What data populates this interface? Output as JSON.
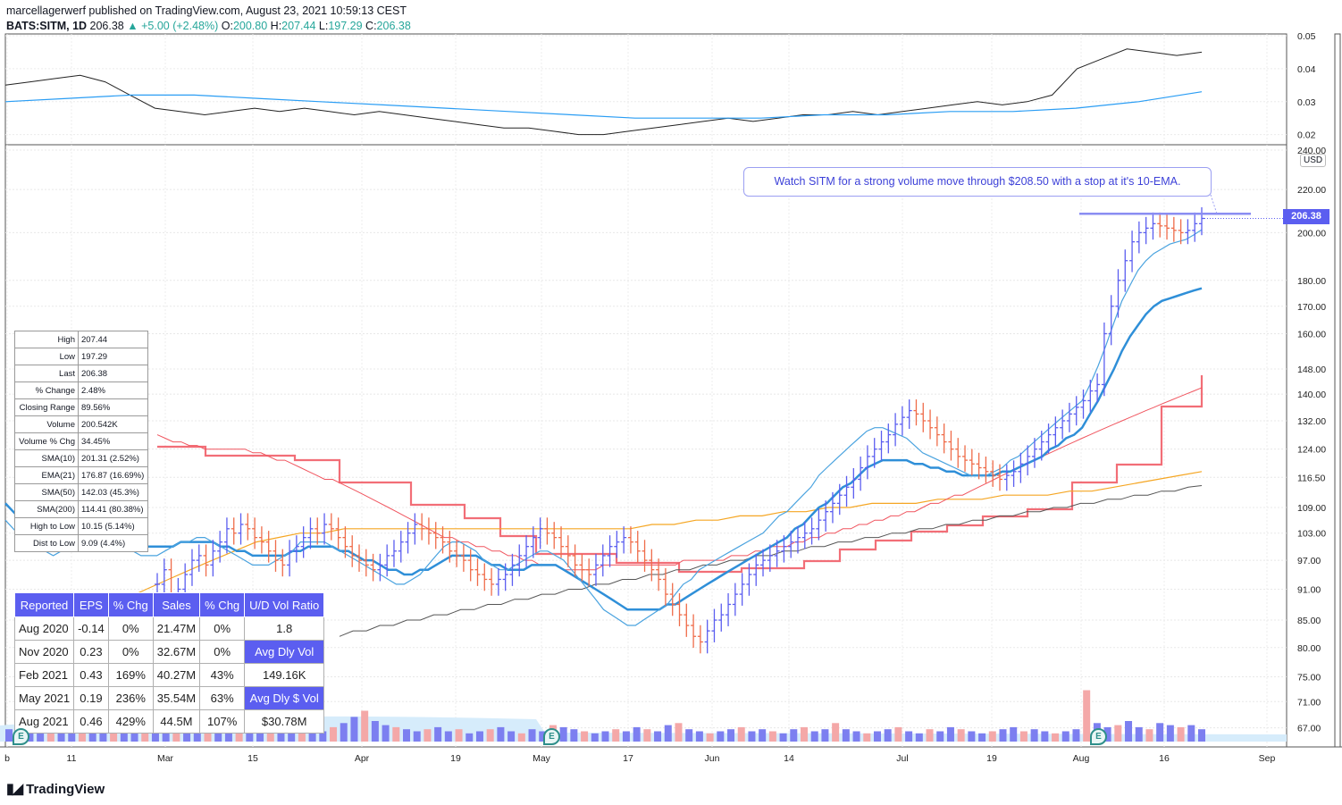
{
  "header": {
    "publish_line": "marcellagerwerf published on TradingView.com, August 23, 2021 10:59:13 CEST",
    "symbol": "BATS:SITM, 1D",
    "last": "206.38",
    "change": "▲ +5.00 (+2.48%)",
    "ohlc_o_label": "O:",
    "ohlc_o": "200.80",
    "ohlc_h_label": "H:",
    "ohlc_h": "207.44",
    "ohlc_l_label": "L:",
    "ohlc_l": "197.29",
    "ohlc_c_label": "C:",
    "ohlc_c": "206.38"
  },
  "annotation": "Watch SITM for a strong volume move through $208.50 with a stop at it's 10-EMA.",
  "price_tag": "206.38",
  "currency": "USD",
  "logo_text": "TradingView",
  "stats": [
    {
      "k": "High",
      "v": "207.44"
    },
    {
      "k": "Low",
      "v": "197.29"
    },
    {
      "k": "Last",
      "v": "206.38"
    },
    {
      "k": "% Change",
      "v": "2.48%"
    },
    {
      "k": "Closing Range",
      "v": "89.56%"
    },
    {
      "k": "Volume",
      "v": "200.542K"
    },
    {
      "k": "Volume % Chg",
      "v": "34.45%"
    },
    {
      "k": "SMA(10)",
      "v": "201.31 (2.52%)"
    },
    {
      "k": "EMA(21)",
      "v": "176.87 (16.69%)"
    },
    {
      "k": "SMA(50)",
      "v": "142.03 (45.3%)"
    },
    {
      "k": "SMA(200)",
      "v": "114.41 (80.38%)"
    },
    {
      "k": "High to Low",
      "v": "10.15 (5.14%)"
    },
    {
      "k": "Dist to Low",
      "v": "9.09 (4.4%)"
    }
  ],
  "earnings": {
    "headers": [
      "Reported",
      "EPS",
      "% Chg",
      "Sales",
      "% Chg",
      "U/D Vol Ratio"
    ],
    "rows": [
      [
        "Aug 2020",
        "-0.14",
        "0%",
        "21.47M",
        "0%",
        "1.8"
      ],
      [
        "Nov 2020",
        "0.23",
        "0%",
        "32.67M",
        "0%",
        "Avg Dly Vol"
      ],
      [
        "Feb 2021",
        "0.43",
        "169%",
        "40.27M",
        "43%",
        "149.16K"
      ],
      [
        "May 2021",
        "0.19",
        "236%",
        "35.54M",
        "63%",
        "Avg Dly $ Vol"
      ],
      [
        "Aug 2021",
        "0.46",
        "429%",
        "44.5M",
        "107%",
        "$30.78M"
      ]
    ]
  },
  "earnings_marker": "E",
  "colors": {
    "up": "#5b5ef0",
    "down": "#ef6c4a",
    "ema10": "#4aa3df",
    "ema21": "#2f8fd8",
    "sma50": "#f0555f",
    "sma200": "#555555",
    "orange": "#f5a623",
    "rs": "#222222",
    "rs_ma": "#2a9df4"
  },
  "chart_data": {
    "type": "line",
    "title": "",
    "xlabel": "",
    "ylabel": "USD",
    "x_tick_labels": [
      "b",
      "11",
      "Mar",
      "15",
      "Apr",
      "19",
      "May",
      "17",
      "Jun",
      "14",
      "Jul",
      "19",
      "Aug",
      "16",
      "Sep"
    ],
    "y_tick_labels": [
      "67.00",
      "71.00",
      "75.00",
      "80.00",
      "85.00",
      "91.00",
      "97.00",
      "103.00",
      "109.00",
      "116.50",
      "124.00",
      "132.00",
      "140.00",
      "148.00",
      "160.00",
      "170.00",
      "180.00",
      "200.00",
      "220.00",
      "240.00"
    ],
    "ylim": [
      65,
      240
    ],
    "scale": "log",
    "upper_pane": {
      "y_tick_labels": [
        "0.02",
        "0.03",
        "0.04",
        "0.05"
      ],
      "ylim": [
        0.018,
        0.05
      ]
    },
    "series": [
      {
        "name": "",
        "kind": "close",
        "values": [
          92,
          95,
          90,
          91,
          94,
          97,
          98,
          96,
          99,
          101,
          104,
          103,
          105,
          104,
          102,
          101,
          99,
          97,
          96,
          99,
          100,
          102,
          104,
          103,
          105,
          104,
          102,
          100,
          98,
          97,
          96,
          95,
          96,
          98,
          99,
          101,
          103,
          105,
          104,
          103,
          102,
          101,
          99,
          98,
          97,
          95,
          94,
          93,
          92,
          93,
          94,
          96,
          98,
          100,
          102,
          104,
          103,
          102,
          100,
          98,
          96,
          95,
          94,
          96,
          98,
          100,
          101,
          102,
          101,
          99,
          97,
          95,
          93,
          90,
          88,
          86,
          84,
          82,
          81,
          83,
          85,
          86,
          88,
          90,
          92,
          94,
          96,
          97,
          98,
          99,
          100,
          101,
          102,
          103,
          104,
          106,
          108,
          110,
          112,
          114,
          116,
          119,
          122,
          124,
          126,
          128,
          131,
          133,
          135,
          134,
          132,
          130,
          128,
          126,
          124,
          122,
          121,
          120,
          119,
          118,
          117,
          116,
          117,
          118,
          120,
          122,
          124,
          126,
          128,
          130,
          132,
          134,
          136,
          138,
          141,
          143,
          160,
          170,
          180,
          188,
          196,
          200,
          202,
          204,
          203,
          202,
          201,
          200,
          201,
          204,
          206.38
        ]
      },
      {
        "name": "",
        "kind": "ema10",
        "values": [
          106,
          104,
          102,
          100,
          99,
          99,
          98,
          99,
          100,
          100,
          101,
          102,
          102,
          102,
          101,
          100,
          99,
          98,
          98,
          98,
          99,
          100,
          101,
          101,
          102,
          102,
          101,
          100,
          99,
          98,
          97,
          96,
          96,
          96,
          97,
          98,
          99,
          101,
          101,
          101,
          101,
          100,
          99,
          98,
          97,
          96,
          95,
          94,
          93,
          92,
          92,
          93,
          94,
          96,
          98,
          100,
          101,
          101,
          100,
          99,
          97,
          96,
          95,
          95,
          96,
          97,
          98,
          99,
          99,
          98,
          97,
          95,
          93,
          91,
          89,
          87,
          86,
          85,
          84,
          84,
          85,
          86,
          87,
          88,
          90,
          92,
          93,
          95,
          96,
          97,
          98,
          99,
          100,
          101,
          102,
          103,
          105,
          107,
          108,
          110,
          112,
          114,
          117,
          119,
          121,
          123,
          125,
          127,
          129,
          130,
          130,
          129,
          128,
          127,
          125,
          123,
          122,
          121,
          120,
          119,
          118,
          117,
          117,
          117,
          118,
          119,
          121,
          122,
          124,
          126,
          128,
          130,
          132,
          134,
          136,
          138,
          143,
          149,
          156,
          164,
          172,
          178,
          184,
          188,
          191,
          193,
          195,
          196,
          197,
          199,
          201.31
        ]
      },
      {
        "name": "",
        "kind": "ema21",
        "values": [
          110,
          108,
          106,
          105,
          104,
          103,
          102,
          102,
          102,
          102,
          102,
          102,
          102,
          102,
          102,
          101,
          101,
          100,
          100,
          100,
          100,
          100,
          101,
          101,
          101,
          101,
          101,
          100,
          100,
          99,
          99,
          98,
          98,
          98,
          98,
          98,
          99,
          99,
          100,
          100,
          100,
          100,
          99,
          99,
          98,
          97,
          97,
          96,
          95,
          95,
          94,
          94,
          95,
          95,
          96,
          97,
          98,
          98,
          98,
          98,
          97,
          96,
          96,
          95,
          95,
          95,
          96,
          96,
          96,
          96,
          95,
          94,
          93,
          92,
          91,
          90,
          89,
          88,
          87,
          87,
          87,
          87,
          87,
          88,
          88,
          89,
          90,
          91,
          92,
          93,
          94,
          95,
          96,
          97,
          98,
          99,
          100,
          101,
          102,
          104,
          105,
          107,
          109,
          110,
          112,
          114,
          115,
          117,
          119,
          120,
          121,
          121,
          121,
          121,
          120,
          120,
          119,
          119,
          118,
          118,
          117,
          117,
          117,
          117,
          117,
          118,
          118,
          119,
          120,
          121,
          122,
          124,
          125,
          127,
          128,
          130,
          134,
          138,
          143,
          148,
          154,
          159,
          163,
          167,
          170,
          172,
          173,
          174,
          175,
          176,
          176.87
        ]
      },
      {
        "name": "",
        "kind": "sma50",
        "values": [
          128,
          127,
          126,
          126,
          125,
          125,
          124,
          124,
          124,
          124,
          124,
          124,
          123,
          123,
          122,
          121,
          121,
          120,
          119,
          118,
          117,
          116,
          116,
          115,
          114,
          113,
          112,
          111,
          110,
          109,
          108,
          107,
          106,
          105,
          104,
          103,
          102,
          102,
          101,
          101,
          100,
          100,
          99,
          99,
          98,
          98,
          97,
          97,
          96,
          96,
          96,
          95,
          95,
          95,
          95,
          95,
          96,
          96,
          96,
          96,
          96,
          96,
          96,
          96,
          96,
          96,
          97,
          97,
          97,
          97,
          97,
          97,
          98,
          98,
          98,
          99,
          99,
          100,
          100,
          100,
          101,
          101,
          102,
          102,
          103,
          103,
          104,
          104,
          105,
          105,
          106,
          106,
          107,
          107,
          108,
          108,
          109,
          110,
          110,
          111,
          112,
          112,
          113,
          114,
          115,
          116,
          117,
          118,
          119,
          120,
          121,
          122,
          123,
          124,
          125,
          126,
          127,
          128,
          129,
          130,
          131,
          132,
          133,
          134,
          135,
          136,
          137,
          138,
          139,
          140,
          141,
          142.03
        ]
      },
      {
        "name": "",
        "kind": "sma200",
        "values": [
          82,
          83,
          83,
          84,
          84,
          85,
          85,
          86,
          86,
          87,
          87,
          88,
          88,
          89,
          89,
          90,
          90,
          91,
          91,
          92,
          92,
          93,
          93,
          94,
          94,
          95,
          95,
          96,
          96,
          97,
          97,
          98,
          98,
          99,
          99,
          100,
          100,
          101,
          101,
          102,
          102,
          103,
          103,
          104,
          104,
          105,
          105,
          106,
          106,
          107,
          107,
          108,
          108,
          109,
          109,
          110,
          110,
          111,
          111,
          112,
          112,
          113,
          113,
          114,
          114.41
        ]
      },
      {
        "name": "",
        "kind": "orange",
        "values": [
          85,
          87,
          89,
          91,
          93,
          95,
          97,
          99,
          101,
          102,
          103,
          103,
          104,
          104,
          104,
          104,
          104,
          104,
          104,
          104,
          104,
          104,
          104,
          104,
          104,
          104,
          105,
          105,
          106,
          106,
          107,
          107,
          108,
          108,
          109,
          109,
          110,
          110,
          110,
          111,
          111,
          111,
          112,
          112,
          112,
          113,
          113,
          114,
          115,
          116,
          117,
          118
        ]
      },
      {
        "name": "",
        "kind": "volume",
        "values": [
          6,
          8,
          5,
          9,
          7,
          6,
          5,
          4,
          6,
          7,
          5,
          6,
          4,
          5,
          6,
          5,
          7,
          8,
          6,
          5,
          4,
          6,
          5,
          4,
          5,
          6,
          7,
          5,
          4,
          6,
          5,
          7,
          9,
          12,
          15,
          10,
          8,
          7,
          6,
          5,
          6,
          7,
          5,
          6,
          4,
          5,
          6,
          7,
          5,
          4,
          6,
          5,
          8,
          7,
          6,
          5,
          4,
          5,
          6,
          5,
          7,
          6,
          5,
          8,
          9,
          6,
          5,
          4,
          5,
          6,
          7,
          5,
          6,
          5,
          4,
          6,
          7,
          5,
          6,
          9,
          6,
          5,
          4,
          5,
          6,
          7,
          5,
          4,
          6,
          5,
          7,
          6,
          5,
          4,
          5,
          6,
          7,
          5,
          6,
          5,
          4,
          5,
          6,
          25,
          9,
          7,
          8,
          10,
          7,
          6,
          9,
          8,
          7,
          8,
          6
        ]
      }
    ],
    "resistance_level": 208.5
  }
}
